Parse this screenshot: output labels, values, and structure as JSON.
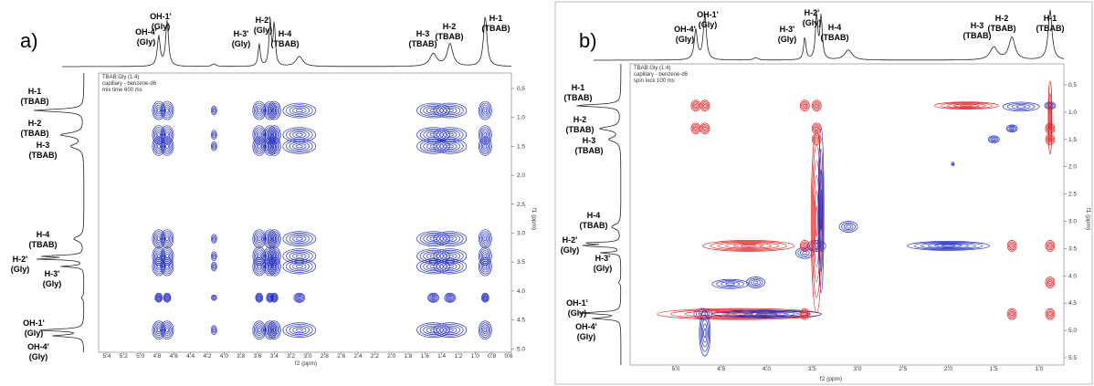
{
  "panels": [
    {
      "label": "a)",
      "info": [
        "TBAB:Gly (1:4)",
        "capillary - benzene-d6",
        "mix time 600 ms"
      ],
      "top_labels": [
        {
          "name": "OH-4'",
          "group": "(Gly)"
        },
        {
          "name": "OH-1'",
          "group": "(Gly)"
        },
        {
          "name": "H-3'",
          "group": "(Gly)"
        },
        {
          "name": "H-2'",
          "group": "(Gly)"
        },
        {
          "name": "H-4",
          "group": "(TBAB)"
        },
        {
          "name": "H-3",
          "group": "(TBAB)"
        },
        {
          "name": "H-2",
          "group": "(TBAB)"
        },
        {
          "name": "H-1",
          "group": "(TBAB)"
        }
      ],
      "left_labels": [
        {
          "name": "H-1",
          "group": "(TBAB)"
        },
        {
          "name": "H-2",
          "group": "(TBAB)"
        },
        {
          "name": "H-3",
          "group": "(TBAB)"
        },
        {
          "name": "H-4",
          "group": "(TBAB)"
        },
        {
          "name": "H-2'",
          "group": "(Gly)"
        },
        {
          "name": "H-3'",
          "group": "(Gly)"
        },
        {
          "name": "OH-1'",
          "group": "(Gly)"
        },
        {
          "name": "OH-4'",
          "group": "(Gly)"
        }
      ],
      "x_ticks": [
        "5.4",
        "5.2",
        "5.0",
        "4.8",
        "4.6",
        "4.4",
        "4.2",
        "4.0",
        "3.8",
        "3.6",
        "3.4",
        "3.2",
        "3.0",
        "2.8",
        "2.6",
        "2.4",
        "2.2",
        "2.0",
        "1.8",
        "1.6",
        "1.4",
        "1.2",
        "1.0",
        "0.8",
        "0.6"
      ],
      "y_ticks": [
        "0.5",
        "1.0",
        "1.5",
        "2.0",
        "2.5",
        "3.0",
        "3.5",
        "4.0",
        "4.5",
        "5.0"
      ],
      "x_axis_label": "f2 (ppm)",
      "y_axis_label": "f1 (ppm)"
    },
    {
      "label": "b)",
      "info": [
        "TBAB:Gly (1:4)",
        "capillary - benzene-d6",
        "spin lock 100 ms"
      ],
      "top_labels": [
        {
          "name": "OH-4'",
          "group": "(Gly)"
        },
        {
          "name": "OH-1'",
          "group": "(Gly)"
        },
        {
          "name": "H-3'",
          "group": "(Gly)"
        },
        {
          "name": "H-2'",
          "group": "(Gly)"
        },
        {
          "name": "H-4",
          "group": "(TBAB)"
        },
        {
          "name": "H-3",
          "group": "(TBAB)"
        },
        {
          "name": "H-2",
          "group": "(TBAB)"
        },
        {
          "name": "H-1",
          "group": "(TBAB)"
        }
      ],
      "left_labels": [
        {
          "name": "H-1",
          "group": "(TBAB)"
        },
        {
          "name": "H-2",
          "group": "(TBAB)"
        },
        {
          "name": "H-3",
          "group": "(TBAB)"
        },
        {
          "name": "H-4",
          "group": "(TBAB)"
        },
        {
          "name": "H-2'",
          "group": "(Gly)"
        },
        {
          "name": "H-3'",
          "group": "(Gly)"
        },
        {
          "name": "OH-1'",
          "group": "(Gly)"
        },
        {
          "name": "OH-4'",
          "group": "(Gly)"
        }
      ],
      "x_ticks": [
        "5.0",
        "4.5",
        "4.0",
        "3.5",
        "3.0",
        "2.5",
        "2.0",
        "1.5",
        "1.0"
      ],
      "y_ticks": [
        "0.5",
        "1.0",
        "1.5",
        "2.0",
        "2.5",
        "3.0",
        "3.5",
        "4.0",
        "4.5",
        "5.0",
        "5.5"
      ],
      "x_axis_label": "f2 (ppm)",
      "y_axis_label": "f1 (ppm)"
    }
  ]
}
